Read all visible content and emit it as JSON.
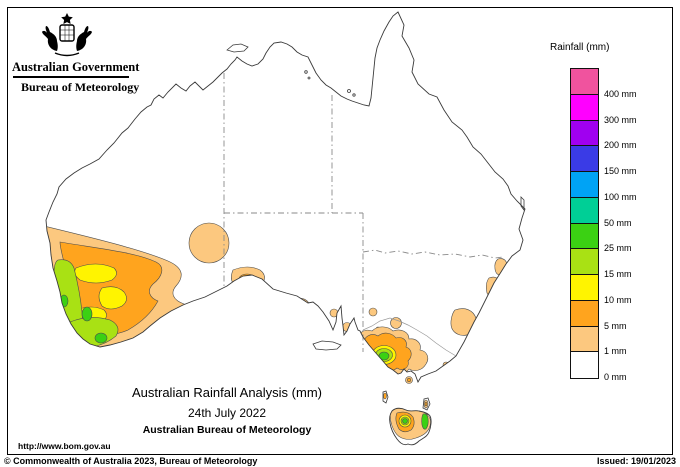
{
  "header": {
    "government": "Australian Government",
    "bureau": "Bureau of Meteorology"
  },
  "legend": {
    "title": "Rainfall (mm)",
    "entries": [
      {
        "label": "400 mm",
        "color": "#F0539E"
      },
      {
        "label": "300 mm",
        "color": "#FF00FF"
      },
      {
        "label": "200 mm",
        "color": "#A000F0"
      },
      {
        "label": "150 mm",
        "color": "#3A3BE6"
      },
      {
        "label": "100 mm",
        "color": "#00A3F5"
      },
      {
        "label": "50 mm",
        "color": "#00CF96"
      },
      {
        "label": "25 mm",
        "color": "#3BD113"
      },
      {
        "label": "15 mm",
        "color": "#A9E114"
      },
      {
        "label": "10 mm",
        "color": "#FFF400"
      },
      {
        "label": "5 mm",
        "color": "#FFA41E"
      },
      {
        "label": "1 mm",
        "color": "#FCC87F"
      },
      {
        "label": "0 mm",
        "color": "#FFFFFF"
      }
    ]
  },
  "titles": {
    "main": "Australian Rainfall Analysis (mm)",
    "date": "24th July 2022",
    "org": "Australian Bureau of Meteorology"
  },
  "footer": {
    "url": "http://www.bom.gov.au",
    "copyright": "© Commonwealth of Australia 2023, Bureau of Meteorology",
    "issued": "Issued: 19/01/2023"
  },
  "map": {
    "region": "Australia with state borders and Tasmania",
    "palette": {
      "mm0": "#FFFFFF",
      "mm1": "#FCC87F",
      "mm5": "#FFA41E",
      "mm10": "#FFF400",
      "mm15": "#A9E114",
      "mm25": "#3BD113"
    },
    "outline_color": "#3a3a3a",
    "state_border_color": "#8a8a8a",
    "rainfall_areas": [
      "southwest Western Australia: broad 1-10 mm with 10-25 mm patches and 25-50 mm maxima near the west and south coasts",
      "isolated 1-5 mm circular patch in inland Western Australia near the WA border",
      "1-5 mm strip along the Great Australian Bight coast and western Eyre Peninsula",
      "southern Victoria: 1-10 mm with a 15-50 mm core",
      "scattered 1-5 mm patches along the New South Wales coast",
      "northern Tasmania: 1-10 mm with 10-50 mm cores in the northwest and east"
    ]
  }
}
